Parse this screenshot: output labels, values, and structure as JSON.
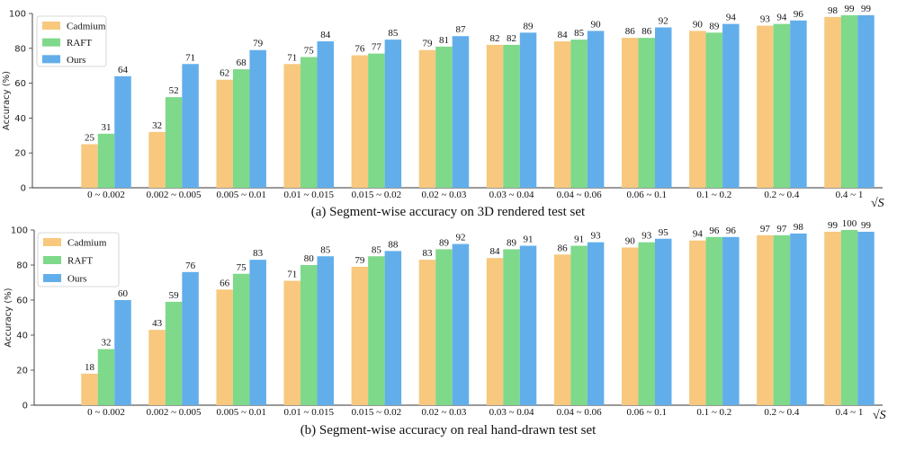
{
  "colors": {
    "Cadmium": "#F7C87E",
    "RAFT": "#7ED98A",
    "Ours": "#62AEEB"
  },
  "chart_data": [
    {
      "type": "bar",
      "caption": "(a) Segment-wise accuracy on 3D rendered test set",
      "ylabel": "Accuracy (%)",
      "xunit": "√S",
      "ylim": [
        0,
        100
      ],
      "yticks": [
        0,
        20,
        40,
        60,
        80,
        100
      ],
      "legend": "top-left",
      "categories": [
        "0 ~ 0.002",
        "0.002 ~ 0.005",
        "0.005 ~ 0.01",
        "0.01 ~ 0.015",
        "0.015 ~ 0.02",
        "0.02 ~ 0.03",
        "0.03 ~ 0.04",
        "0.04 ~ 0.06",
        "0.06 ~ 0.1",
        "0.1 ~ 0.2",
        "0.2 ~ 0.4",
        "0.4 ~ 1"
      ],
      "series": [
        {
          "name": "Cadmium",
          "values": [
            25,
            32,
            62,
            71,
            76,
            79,
            82,
            84,
            86,
            90,
            93,
            98
          ]
        },
        {
          "name": "RAFT",
          "values": [
            31,
            52,
            68,
            75,
            77,
            81,
            82,
            85,
            86,
            89,
            94,
            99
          ]
        },
        {
          "name": "Ours",
          "values": [
            64,
            71,
            79,
            84,
            85,
            87,
            89,
            90,
            92,
            94,
            96,
            99
          ]
        }
      ]
    },
    {
      "type": "bar",
      "caption": "(b) Segment-wise accuracy on real hand-drawn test set",
      "ylabel": "Accuracy (%)",
      "xunit": "√S",
      "ylim": [
        0,
        100
      ],
      "yticks": [
        0,
        20,
        40,
        60,
        80,
        100
      ],
      "legend": "top-left",
      "categories": [
        "0 ~ 0.002",
        "0.002 ~ 0.005",
        "0.005 ~ 0.01",
        "0.01 ~ 0.015",
        "0.015 ~ 0.02",
        "0.02 ~ 0.03",
        "0.03 ~ 0.04",
        "0.04 ~ 0.06",
        "0.06 ~ 0.1",
        "0.1 ~ 0.2",
        "0.2 ~ 0.4",
        "0.4 ~ 1"
      ],
      "series": [
        {
          "name": "Cadmium",
          "values": [
            18,
            43,
            66,
            71,
            79,
            83,
            84,
            86,
            90,
            94,
            97,
            99
          ]
        },
        {
          "name": "RAFT",
          "values": [
            32,
            59,
            75,
            80,
            85,
            89,
            89,
            91,
            93,
            96,
            97,
            100
          ]
        },
        {
          "name": "Ours",
          "values": [
            60,
            76,
            83,
            85,
            88,
            92,
            91,
            93,
            95,
            96,
            98,
            99
          ]
        }
      ]
    }
  ]
}
